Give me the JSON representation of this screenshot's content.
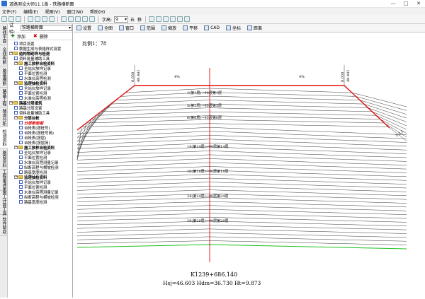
{
  "window": {
    "title": "道路测设大师11.1版 - 铁路横断面"
  },
  "menu": [
    "文件(F)",
    "编辑(E)",
    "视图(V)",
    "窗口(W)",
    "帮助(H)"
  ],
  "toolbar": {
    "font_label": "字高:",
    "font_size": "9",
    "align_right": "右",
    "move": "移"
  },
  "left_tabs": [
    "路线平面",
    "全线纵断",
    "路基横断",
    "路基工程",
    "隧道分析",
    "检测资料",
    "路面资料",
    "工程量清单",
    "施工计算工具",
    "软件帮助"
  ],
  "panel": {
    "head_label": "试验:",
    "selector": "铁路横断面",
    "add_label": "添加",
    "delete_label": "删除",
    "tree": [
      {
        "lvl": 1,
        "type": "box",
        "text": "项目设置"
      },
      {
        "lvl": 1,
        "type": "box",
        "text": "数据生成与表格样式设置"
      },
      {
        "lvl": 0,
        "type": "group",
        "text": "结构物砌样与检测",
        "bold": true
      },
      {
        "lvl": 1,
        "type": "box",
        "text": "资料批量辅助工具"
      },
      {
        "lvl": 1,
        "type": "group",
        "text": "施工放样自检资料",
        "bold": true
      },
      {
        "lvl": 2,
        "type": "box",
        "text": "全站仪放样记录"
      },
      {
        "lvl": 2,
        "type": "box",
        "text": "平面位置检测"
      },
      {
        "lvl": 2,
        "type": "box",
        "text": "水准仪高程检测"
      },
      {
        "lvl": 1,
        "type": "group",
        "text": "监理抽检资料",
        "bold": true
      },
      {
        "lvl": 2,
        "type": "box",
        "text": "全站仪放样记录"
      },
      {
        "lvl": 2,
        "type": "box",
        "text": "平面位置检测"
      },
      {
        "lvl": 2,
        "type": "box",
        "text": "水准仪高程检测"
      },
      {
        "lvl": 0,
        "type": "group",
        "text": "路基分层填筑",
        "bold": true
      },
      {
        "lvl": 1,
        "type": "box",
        "text": "路基分层设置"
      },
      {
        "lvl": 1,
        "type": "box",
        "text": "资料批量辅助工具"
      },
      {
        "lvl": 1,
        "type": "group",
        "text": "分层台帐",
        "bold": true
      },
      {
        "lvl": 2,
        "type": "box",
        "text": "分层断面图",
        "red": true
      },
      {
        "lvl": 2,
        "type": "box",
        "text": "台帐表(按桩号)"
      },
      {
        "lvl": 2,
        "type": "box",
        "text": "台帐表(按桩号简)"
      },
      {
        "lvl": 2,
        "type": "box",
        "text": "台帐表(按层)"
      },
      {
        "lvl": 2,
        "type": "box",
        "text": "台帐表(按层简)"
      },
      {
        "lvl": 1,
        "type": "group",
        "text": "施工放样自检资料",
        "bold": true
      },
      {
        "lvl": 2,
        "type": "box",
        "text": "全站仪放样记录"
      },
      {
        "lvl": 2,
        "type": "box",
        "text": "平面位置检测"
      },
      {
        "lvl": 2,
        "type": "box",
        "text": "水准仪高程测量记录"
      },
      {
        "lvl": 2,
        "type": "box",
        "text": "纵断高程与横坡检测"
      },
      {
        "lvl": 2,
        "type": "box",
        "text": "路基宽度检测"
      },
      {
        "lvl": 1,
        "type": "group",
        "text": "监理抽检资料",
        "bold": true
      },
      {
        "lvl": 2,
        "type": "box",
        "text": "全站仪放样记录"
      },
      {
        "lvl": 2,
        "type": "box",
        "text": "平面位置检测"
      },
      {
        "lvl": 2,
        "type": "box",
        "text": "水准仪高程测量记录"
      },
      {
        "lvl": 2,
        "type": "box",
        "text": "纵断高程与横坡检测"
      },
      {
        "lvl": 2,
        "type": "box",
        "text": "路基宽度检测"
      }
    ]
  },
  "canvas_tools": [
    "设置",
    "全图",
    "窗口",
    "范围",
    "缩放",
    "平移",
    "CAD",
    "坐标",
    "距离"
  ],
  "drawing": {
    "scale": "比例1：78",
    "left_elev": "8.050",
    "left_elev2": "48.441",
    "right_elev": "8.050",
    "right_elev2": "48.441",
    "slope_left": "4%",
    "slope_right": "4%",
    "side_slope": "1:1.5",
    "layer_labels": [
      "1(第1层)→90层第1层",
      "5(第5层)→90层第5层",
      "6(第6层)→90层第6层",
      "14(第14层)→90层第14层",
      "18(第18层)→90层第18层",
      "24(第24层)→90层第24层",
      "29(第29层)→90层第29层"
    ],
    "station": "K1239+686.140",
    "readout": "Hsj=46.603  Hdm=36.730  Ht=9.873"
  }
}
